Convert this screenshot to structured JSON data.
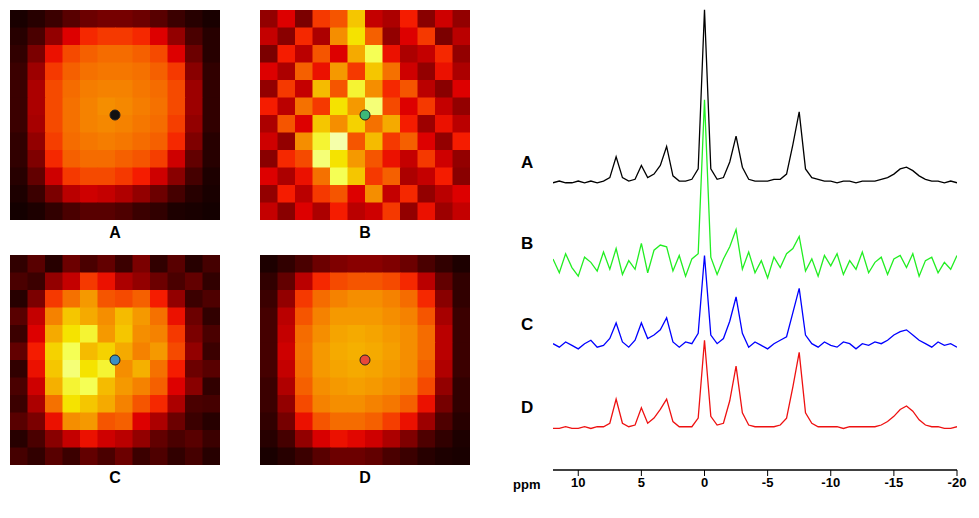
{
  "chart_data": [
    {
      "type": "heatmap",
      "title": "A",
      "zlim": [
        0,
        100
      ],
      "point": [
        6,
        6
      ],
      "color": "#111111",
      "tick_labels": false,
      "cells": [
        [
          5,
          8,
          12,
          18,
          22,
          24,
          24,
          22,
          18,
          12,
          8,
          5
        ],
        [
          8,
          15,
          30,
          45,
          52,
          55,
          55,
          52,
          45,
          30,
          15,
          8
        ],
        [
          10,
          25,
          48,
          58,
          62,
          64,
          64,
          62,
          58,
          45,
          22,
          8
        ],
        [
          12,
          32,
          55,
          62,
          65,
          66,
          66,
          65,
          62,
          55,
          28,
          10
        ],
        [
          12,
          35,
          58,
          64,
          67,
          68,
          68,
          66,
          64,
          58,
          32,
          10
        ],
        [
          12,
          35,
          58,
          65,
          68,
          70,
          69,
          67,
          65,
          58,
          32,
          10
        ],
        [
          12,
          34,
          58,
          65,
          68,
          69,
          68,
          66,
          64,
          56,
          30,
          10
        ],
        [
          10,
          30,
          56,
          64,
          66,
          67,
          66,
          64,
          62,
          52,
          26,
          8
        ],
        [
          10,
          26,
          52,
          62,
          64,
          64,
          62,
          60,
          56,
          42,
          20,
          8
        ],
        [
          8,
          20,
          42,
          55,
          58,
          58,
          55,
          50,
          42,
          28,
          14,
          6
        ],
        [
          6,
          12,
          25,
          38,
          42,
          40,
          36,
          30,
          22,
          14,
          8,
          5
        ],
        [
          4,
          6,
          10,
          15,
          18,
          18,
          16,
          12,
          10,
          6,
          5,
          4
        ]
      ]
    },
    {
      "type": "heatmap",
      "title": "B",
      "zlim": [
        0,
        100
      ],
      "point": [
        6,
        6
      ],
      "color": "#3cb878",
      "tick_labels": false,
      "cells": [
        [
          30,
          45,
          25,
          55,
          60,
          80,
          40,
          35,
          50,
          28,
          42,
          30
        ],
        [
          40,
          28,
          52,
          35,
          70,
          85,
          62,
          30,
          45,
          55,
          25,
          38
        ],
        [
          25,
          50,
          38,
          60,
          45,
          75,
          90,
          48,
          35,
          40,
          52,
          30
        ],
        [
          45,
          35,
          62,
          48,
          72,
          55,
          80,
          65,
          42,
          30,
          48,
          35
        ],
        [
          30,
          55,
          40,
          78,
          60,
          88,
          70,
          52,
          60,
          38,
          28,
          45
        ],
        [
          50,
          38,
          65,
          55,
          85,
          72,
          92,
          58,
          45,
          55,
          40,
          30
        ],
        [
          35,
          60,
          45,
          80,
          70,
          82,
          65,
          75,
          50,
          32,
          48,
          38
        ],
        [
          42,
          30,
          70,
          88,
          95,
          60,
          78,
          55,
          62,
          45,
          30,
          50
        ],
        [
          28,
          52,
          58,
          92,
          85,
          72,
          60,
          48,
          40,
          55,
          42,
          30
        ],
        [
          45,
          35,
          48,
          65,
          90,
          80,
          55,
          62,
          35,
          40,
          50,
          28
        ],
        [
          30,
          50,
          38,
          55,
          60,
          45,
          70,
          40,
          52,
          30,
          38,
          45
        ],
        [
          40,
          28,
          45,
          35,
          50,
          38,
          42,
          55,
          30,
          48,
          32,
          40
        ]
      ]
    },
    {
      "type": "heatmap",
      "title": "C",
      "zlim": [
        0,
        100
      ],
      "point": [
        6,
        6
      ],
      "color": "#3a8fc4",
      "tick_labels": false,
      "cells": [
        [
          10,
          18,
          8,
          22,
          15,
          20,
          12,
          25,
          10,
          18,
          8,
          14
        ],
        [
          15,
          12,
          30,
          40,
          55,
          48,
          35,
          30,
          22,
          15,
          20,
          10
        ],
        [
          8,
          25,
          55,
          65,
          72,
          60,
          58,
          62,
          50,
          30,
          12,
          16
        ],
        [
          18,
          40,
          68,
          80,
          75,
          70,
          78,
          72,
          65,
          48,
          22,
          10
        ],
        [
          12,
          45,
          75,
          85,
          88,
          72,
          80,
          70,
          68,
          55,
          25,
          15
        ],
        [
          20,
          50,
          82,
          90,
          78,
          82,
          75,
          68,
          72,
          58,
          30,
          12
        ],
        [
          10,
          48,
          80,
          92,
          85,
          88,
          70,
          76,
          65,
          50,
          22,
          18
        ],
        [
          15,
          42,
          76,
          88,
          90,
          78,
          72,
          68,
          62,
          45,
          28,
          10
        ],
        [
          12,
          35,
          65,
          85,
          80,
          75,
          68,
          60,
          52,
          35,
          15,
          14
        ],
        [
          18,
          25,
          48,
          70,
          72,
          60,
          62,
          45,
          35,
          22,
          12,
          8
        ],
        [
          8,
          15,
          28,
          40,
          48,
          42,
          38,
          30,
          20,
          15,
          18,
          12
        ],
        [
          14,
          10,
          18,
          12,
          20,
          15,
          22,
          12,
          16,
          10,
          14,
          8
        ]
      ]
    },
    {
      "type": "heatmap",
      "title": "D",
      "zlim": [
        0,
        100
      ],
      "point": [
        6,
        6
      ],
      "color": "#e8483a",
      "tick_labels": false,
      "cells": [
        [
          6,
          10,
          15,
          22,
          26,
          28,
          28,
          26,
          22,
          15,
          10,
          6
        ],
        [
          10,
          20,
          38,
          52,
          58,
          60,
          60,
          58,
          52,
          38,
          20,
          10
        ],
        [
          12,
          30,
          55,
          64,
          68,
          70,
          70,
          68,
          64,
          52,
          28,
          10
        ],
        [
          14,
          38,
          60,
          68,
          72,
          72,
          72,
          70,
          68,
          60,
          34,
          12
        ],
        [
          14,
          40,
          64,
          70,
          74,
          75,
          74,
          72,
          70,
          64,
          38,
          12
        ],
        [
          14,
          42,
          65,
          72,
          75,
          76,
          75,
          73,
          70,
          64,
          38,
          12
        ],
        [
          14,
          40,
          64,
          72,
          74,
          75,
          74,
          72,
          70,
          62,
          36,
          12
        ],
        [
          12,
          36,
          62,
          70,
          72,
          73,
          72,
          70,
          68,
          58,
          30,
          10
        ],
        [
          12,
          30,
          58,
          68,
          70,
          70,
          68,
          66,
          62,
          48,
          24,
          10
        ],
        [
          10,
          24,
          48,
          60,
          64,
          64,
          62,
          56,
          48,
          32,
          16,
          8
        ],
        [
          8,
          14,
          30,
          44,
          48,
          46,
          42,
          35,
          26,
          16,
          10,
          6
        ],
        [
          5,
          8,
          12,
          18,
          22,
          22,
          20,
          15,
          12,
          8,
          6,
          5
        ]
      ]
    },
    {
      "type": "line",
      "xlabel": "ppm",
      "xlim": [
        12,
        -20
      ],
      "xticks": [
        10,
        5,
        0,
        -5,
        -10,
        -15,
        -20
      ],
      "tick_labels": "x",
      "x": [
        12,
        11.5,
        11,
        10.5,
        10,
        9.5,
        9,
        8.5,
        8,
        7.5,
        7,
        6.5,
        6,
        5.5,
        5,
        4.5,
        4,
        3.5,
        3,
        2.5,
        2,
        1.5,
        1,
        0.5,
        0,
        -0.5,
        -1,
        -1.5,
        -2,
        -2.5,
        -3,
        -3.5,
        -4,
        -4.5,
        -5,
        -5.5,
        -6,
        -6.5,
        -7,
        -7.5,
        -8,
        -8.5,
        -9,
        -9.5,
        -10,
        -10.5,
        -11,
        -11.5,
        -12,
        -12.5,
        -13,
        -13.5,
        -14,
        -14.5,
        -15,
        -15.5,
        -16,
        -16.5,
        -17,
        -17.5,
        -18,
        -18.5,
        -19,
        -19.5,
        -20
      ],
      "series": [
        {
          "name": "A",
          "color": "#000000",
          "ylim": [
            -166,
            101
          ],
          "values": [
            0,
            1,
            0,
            0,
            1,
            0,
            1,
            0,
            1,
            3,
            15,
            3,
            1,
            2,
            10,
            3,
            5,
            10,
            21,
            4,
            1,
            1,
            2,
            8,
            100,
            8,
            2,
            3,
            12,
            27,
            9,
            2,
            1,
            1,
            1,
            2,
            2,
            5,
            22,
            41,
            8,
            3,
            2,
            1,
            1,
            0,
            1,
            1,
            0,
            1,
            1,
            1,
            2,
            3,
            5,
            8,
            9,
            7,
            4,
            2,
            1,
            1,
            0,
            1,
            0
          ]
        },
        {
          "name": "B",
          "color": "#22ee22",
          "ylim": [
            -119,
            148
          ],
          "values": [
            3,
            -5,
            6,
            -2,
            -7,
            4,
            1,
            -4,
            7,
            -3,
            9,
            -6,
            2,
            -3,
            12,
            -5,
            8,
            11,
            10,
            -4,
            5,
            -7,
            3,
            6,
            95,
            4,
            -6,
            3,
            10,
            20,
            -3,
            7,
            -5,
            2,
            -8,
            4,
            -2,
            6,
            9,
            16,
            -4,
            3,
            -7,
            5,
            -1,
            6,
            -6,
            2,
            -3,
            7,
            -5,
            1,
            4,
            -6,
            3,
            5,
            -2,
            6,
            -7,
            2,
            4,
            -5,
            1,
            -3,
            5
          ]
        },
        {
          "name": "C",
          "color": "#0000ff",
          "ylim": [
            -72,
            195
          ],
          "values": [
            1,
            -1,
            2,
            0,
            -2,
            1,
            3,
            -1,
            0,
            4,
            13,
            2,
            -1,
            3,
            13,
            4,
            6,
            9,
            16,
            2,
            -1,
            2,
            1,
            7,
            52,
            6,
            1,
            4,
            14,
            28,
            7,
            -1,
            2,
            0,
            -2,
            1,
            3,
            5,
            19,
            33,
            6,
            1,
            -1,
            2,
            0,
            -1,
            2,
            1,
            -2,
            1,
            0,
            2,
            1,
            3,
            6,
            8,
            9,
            6,
            3,
            1,
            -1,
            2,
            0,
            1,
            -1
          ]
        },
        {
          "name": "D",
          "color": "#ee1111",
          "ylim": [
            -24,
            243
          ],
          "values": [
            0,
            0,
            1,
            0,
            0,
            1,
            0,
            1,
            1,
            3,
            17,
            3,
            1,
            2,
            12,
            3,
            6,
            11,
            17,
            4,
            1,
            1,
            1,
            6,
            51,
            7,
            2,
            3,
            16,
            36,
            9,
            2,
            1,
            1,
            1,
            1,
            2,
            6,
            24,
            44,
            9,
            3,
            1,
            1,
            1,
            1,
            0,
            1,
            1,
            1,
            1,
            1,
            2,
            4,
            7,
            11,
            13,
            10,
            5,
            2,
            1,
            1,
            0,
            0,
            1
          ]
        }
      ]
    }
  ]
}
